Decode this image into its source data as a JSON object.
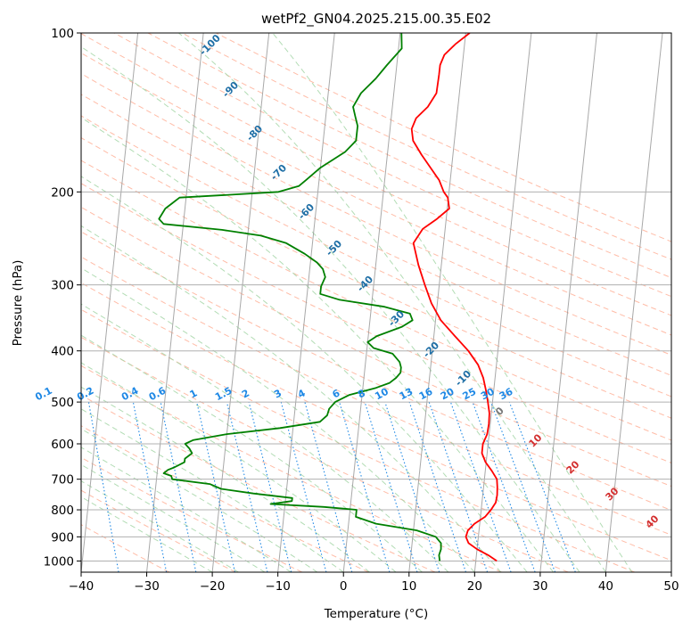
{
  "chart_data": {
    "type": "line",
    "title": "wetPf2_GN04.2025.215.00.35.E02",
    "xlabel": "Temperature (°C)",
    "ylabel": "Pressure (hPa)",
    "xlim": [
      -40,
      50
    ],
    "ylim": [
      1050,
      100
    ],
    "y_scale": "log",
    "x_ticks": [
      "−40",
      "−30",
      "−20",
      "−10",
      "0",
      "10",
      "20",
      "30",
      "40",
      "50"
    ],
    "y_ticks": [
      100,
      200,
      300,
      400,
      500,
      600,
      700,
      800,
      900,
      1000
    ],
    "grid": true,
    "colors": {
      "temperature": "#ff0000",
      "dewpoint": "#008000",
      "isotherm": "#999999",
      "dry_adiabat": "#ffab91",
      "moist_adiabat": "#a5d6a7",
      "mixing_ratio": "#1e88e5",
      "isotherm_label": "#1f6fa6",
      "adiabat_label": "#d32f2f",
      "zero_label": "#777777"
    },
    "isotherm_labels": [
      "-100",
      "-90",
      "-80",
      "-70",
      "-60",
      "-50",
      "-40",
      "-30",
      "-20",
      "-10",
      "0",
      "10",
      "20",
      "30",
      "40"
    ],
    "mixing_ratio_labels": [
      "0.1",
      "0.2",
      "0.4",
      "0.6",
      "1",
      "1.5",
      "2",
      "3",
      "4",
      "6",
      "8",
      "10",
      "13",
      "16",
      "20",
      "25",
      "30",
      "36"
    ],
    "series": [
      {
        "key": "temperature",
        "points": [
          [
            23.2,
            1000
          ],
          [
            21.8,
            975
          ],
          [
            20.0,
            950
          ],
          [
            18.6,
            925
          ],
          [
            18.1,
            900
          ],
          [
            18.3,
            875
          ],
          [
            19.2,
            850
          ],
          [
            20.7,
            825
          ],
          [
            21.5,
            800
          ],
          [
            22.1,
            775
          ],
          [
            22.2,
            750
          ],
          [
            22.1,
            725
          ],
          [
            21.9,
            700
          ],
          [
            21.0,
            675
          ],
          [
            19.9,
            650
          ],
          [
            19.2,
            625
          ],
          [
            19.2,
            600
          ],
          [
            19.7,
            575
          ],
          [
            19.8,
            550
          ],
          [
            19.7,
            525
          ],
          [
            19.3,
            500
          ],
          [
            18.8,
            475
          ],
          [
            18.2,
            450
          ],
          [
            17.2,
            425
          ],
          [
            15.5,
            400
          ],
          [
            13.2,
            375
          ],
          [
            10.8,
            350
          ],
          [
            9.1,
            325
          ],
          [
            7.8,
            300
          ],
          [
            6.5,
            275
          ],
          [
            5.4,
            250
          ],
          [
            6.6,
            235
          ],
          [
            8.6,
            225
          ],
          [
            10.3,
            215
          ],
          [
            9.9,
            205
          ],
          [
            9.2,
            200
          ],
          [
            8.3,
            190
          ],
          [
            6.8,
            180
          ],
          [
            5.2,
            170
          ],
          [
            3.7,
            160
          ],
          [
            3.3,
            152
          ],
          [
            3.8,
            145
          ],
          [
            5.4,
            138
          ],
          [
            6.5,
            130
          ],
          [
            6.6,
            120
          ],
          [
            6.6,
            115
          ],
          [
            7.1,
            110
          ],
          [
            8.6,
            105
          ],
          [
            10.6,
            100
          ]
        ]
      },
      {
        "key": "dewpoint",
        "points": [
          [
            14.5,
            1000
          ],
          [
            14.3,
            975
          ],
          [
            14.5,
            950
          ],
          [
            14.4,
            925
          ],
          [
            13.5,
            900
          ],
          [
            10.5,
            875
          ],
          [
            4.2,
            850
          ],
          [
            1.0,
            825
          ],
          [
            1.0,
            800
          ],
          [
            -4.0,
            790
          ],
          [
            -12.2,
            780
          ],
          [
            -9.0,
            770
          ],
          [
            -9.0,
            760
          ],
          [
            -15.0,
            745
          ],
          [
            -20.0,
            730
          ],
          [
            -21.8,
            715
          ],
          [
            -27.6,
            700
          ],
          [
            -27.8,
            690
          ],
          [
            -29.0,
            682
          ],
          [
            -28.4,
            672
          ],
          [
            -27.5,
            665
          ],
          [
            -26.0,
            650
          ],
          [
            -26.0,
            640
          ],
          [
            -25.0,
            625
          ],
          [
            -25.5,
            612
          ],
          [
            -26.2,
            600
          ],
          [
            -25.0,
            590
          ],
          [
            -20.0,
            575
          ],
          [
            -12.0,
            560
          ],
          [
            -6.0,
            545
          ],
          [
            -5.0,
            530
          ],
          [
            -4.8,
            515
          ],
          [
            -4.0,
            500
          ],
          [
            -2.0,
            485
          ],
          [
            2.0,
            470
          ],
          [
            4.0,
            460
          ],
          [
            4.9,
            450
          ],
          [
            5.5,
            440
          ],
          [
            5.5,
            430
          ],
          [
            5.2,
            420
          ],
          [
            4.0,
            405
          ],
          [
            1.0,
            395
          ],
          [
            0.0,
            385
          ],
          [
            1.3,
            375
          ],
          [
            5.0,
            360
          ],
          [
            6.5,
            350
          ],
          [
            6.0,
            340
          ],
          [
            2.0,
            330
          ],
          [
            -5.0,
            320
          ],
          [
            -8.0,
            312
          ],
          [
            -8.0,
            302
          ],
          [
            -7.5,
            290
          ],
          [
            -8.0,
            280
          ],
          [
            -9.0,
            272
          ],
          [
            -11.0,
            262
          ],
          [
            -14.0,
            250
          ],
          [
            -18.0,
            242
          ],
          [
            -24.0,
            236
          ],
          [
            -33.0,
            230
          ],
          [
            -33.8,
            225
          ],
          [
            -33.0,
            215
          ],
          [
            -32.0,
            210
          ],
          [
            -31.0,
            205
          ],
          [
            -25.0,
            203
          ],
          [
            -16.0,
            200
          ],
          [
            -13.0,
            195
          ],
          [
            -12.0,
            190
          ],
          [
            -10.0,
            180
          ],
          [
            -6.5,
            168
          ],
          [
            -5.0,
            160
          ],
          [
            -5.0,
            150
          ],
          [
            -5.5,
            144
          ],
          [
            -6.0,
            138
          ],
          [
            -5.0,
            130
          ],
          [
            -3.0,
            122
          ],
          [
            -1.5,
            115
          ],
          [
            0.5,
            107
          ],
          [
            0.2,
            100
          ]
        ]
      }
    ]
  }
}
